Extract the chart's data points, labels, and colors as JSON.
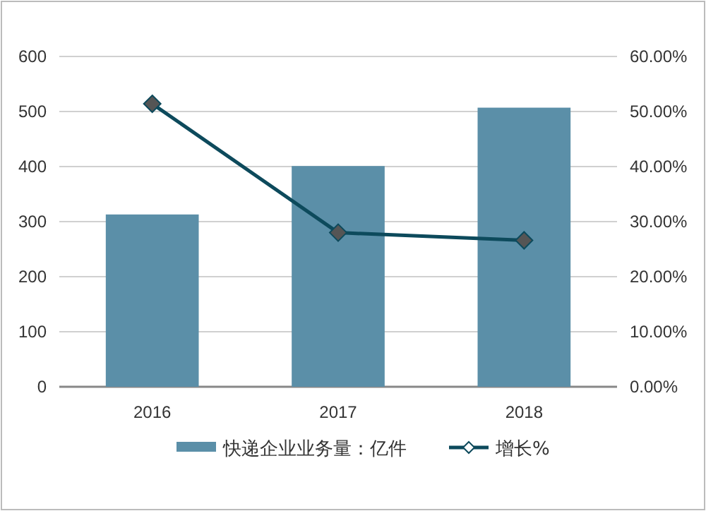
{
  "chart_data": {
    "type": "bar",
    "categories": [
      "2016",
      "2017",
      "2018"
    ],
    "series": [
      {
        "name": "快递企业业务量：亿件",
        "color": "#5b8fa8",
        "values": [
          313,
          401,
          507
        ]
      },
      {
        "name": "增长%",
        "type": "line",
        "axis": "y2",
        "color": "#0d4a5c",
        "marker": "diamond",
        "values": [
          51.4,
          28.0,
          26.6
        ]
      }
    ],
    "ylim": [
      0,
      600
    ],
    "yticks": [
      0,
      100,
      200,
      300,
      400,
      500,
      600
    ],
    "y2lim": [
      0,
      60
    ],
    "y2ticks": [
      {
        "value": 0,
        "label": "0.00%"
      },
      {
        "value": 10,
        "label": "10.00%"
      },
      {
        "value": 20,
        "label": "20.00%"
      },
      {
        "value": 30,
        "label": "30.00%"
      },
      {
        "value": 40,
        "label": "40.00%"
      },
      {
        "value": 50,
        "label": "50.00%"
      },
      {
        "value": 60,
        "label": "60.00%"
      }
    ],
    "grid": "y",
    "legend": "bottom"
  }
}
